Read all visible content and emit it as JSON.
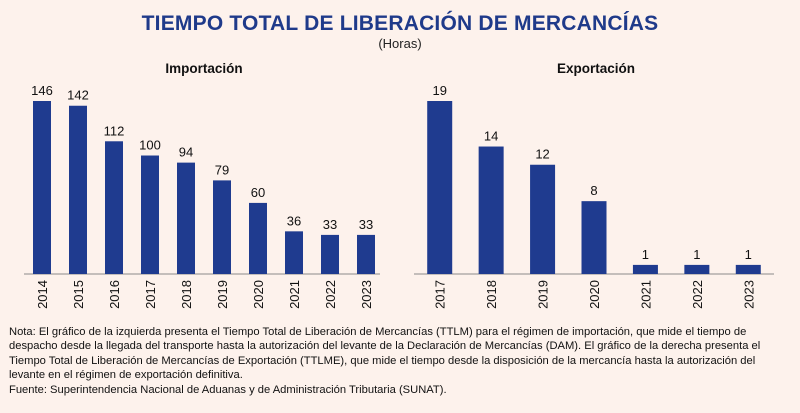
{
  "title": "TIEMPO TOTAL DE LIBERACIÓN DE MERCANCÍAS",
  "subtitle": "(Horas)",
  "chart_data": [
    {
      "type": "bar",
      "title": "Importación",
      "categories": [
        "2014",
        "2015",
        "2016",
        "2017",
        "2018",
        "2019",
        "2020",
        "2021",
        "2022",
        "2023"
      ],
      "values": [
        146,
        142,
        112,
        100,
        94,
        79,
        60,
        36,
        33,
        33
      ],
      "ylim": [
        0,
        146
      ],
      "grid": false,
      "bar_color": "#1f3b8f"
    },
    {
      "type": "bar",
      "title": "Exportación",
      "categories": [
        "2017",
        "2018",
        "2019",
        "2020",
        "2021",
        "2022",
        "2023"
      ],
      "values": [
        19,
        14,
        12,
        8,
        1,
        1,
        1
      ],
      "ylim": [
        0,
        19
      ],
      "grid": false,
      "bar_color": "#1f3b8f"
    }
  ],
  "notes": {
    "nota": "Nota: El gráfico de la izquierda presenta el Tiempo Total de Liberación de Mercancías (TTLM) para el régimen de importación, que mide el tiempo de despacho desde la llegada del transporte hasta la autorización del levante de la Declaración de Mercancías (DAM). El gráfico de la derecha presenta el Tiempo Total de Liberación de Mercancías de Exportación (TTLME), que mide el tiempo desde la disposición de la mercancía hasta la autorización del levante en el régimen de exportación definitiva.",
    "fuente": "Fuente: Superintendencia Nacional de Aduanas y de Administración Tributaria (SUNAT)."
  }
}
